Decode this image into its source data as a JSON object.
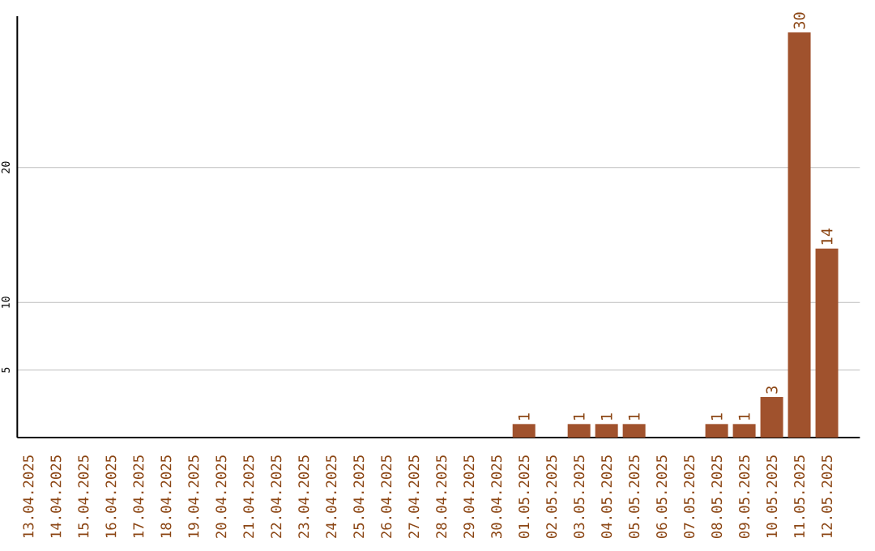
{
  "chart_data": {
    "type": "bar",
    "categories": [
      "13.04.2025",
      "14.04.2025",
      "15.04.2025",
      "16.04.2025",
      "17.04.2025",
      "18.04.2025",
      "19.04.2025",
      "20.04.2025",
      "21.04.2025",
      "22.04.2025",
      "23.04.2025",
      "24.04.2025",
      "25.04.2025",
      "26.04.2025",
      "27.04.2025",
      "28.04.2025",
      "29.04.2025",
      "30.04.2025",
      "01.05.2025",
      "02.05.2025",
      "03.05.2025",
      "04.05.2025",
      "05.05.2025",
      "06.05.2025",
      "07.05.2025",
      "08.05.2025",
      "09.05.2025",
      "10.05.2025",
      "11.05.2025",
      "12.05.2025"
    ],
    "values": [
      0,
      0,
      0,
      0,
      0,
      0,
      0,
      0,
      0,
      0,
      0,
      0,
      0,
      0,
      0,
      0,
      0,
      0,
      1,
      0,
      1,
      1,
      1,
      0,
      0,
      1,
      1,
      3,
      30,
      14
    ],
    "value_labels": [
      null,
      null,
      null,
      null,
      null,
      null,
      null,
      null,
      null,
      null,
      null,
      null,
      null,
      null,
      null,
      null,
      null,
      null,
      "1",
      null,
      "1",
      "1",
      "1",
      null,
      null,
      "1",
      "1",
      "3",
      "30",
      "14"
    ],
    "color": "#a0522d",
    "ylim": [
      0,
      31.2
    ],
    "yticks": [
      5,
      10,
      20
    ],
    "grid": "y"
  }
}
